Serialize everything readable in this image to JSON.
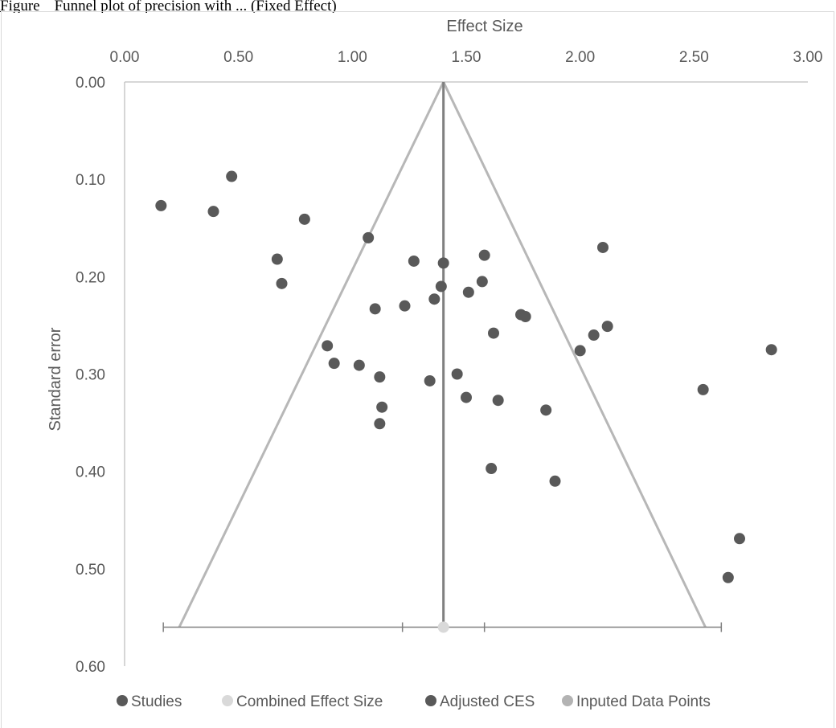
{
  "caption": {
    "label": "Figure",
    "text": "Funnel plot of precision with ... (Fixed Effect)"
  },
  "chart_data": {
    "type": "scatter",
    "title": "Effect Size",
    "xlabel": "Effect Size",
    "ylabel": "Standard error",
    "xlim": [
      0,
      3
    ],
    "ylim": [
      0,
      0.6
    ],
    "y_inverted": true,
    "x_axis_position": "top",
    "x_ticks": [
      "0.00",
      "0.50",
      "1.00",
      "1.50",
      "2.00",
      "2.50",
      "3.00"
    ],
    "y_ticks": [
      "0.00",
      "0.10",
      "0.20",
      "0.30",
      "0.40",
      "0.50",
      "0.60"
    ],
    "grid": false,
    "legend_position": "bottom",
    "colors": {
      "studies": "#595959",
      "combined": "#d9d9d9",
      "adjusted": "#595959",
      "imputed": "#b3b3b3",
      "funnel": "#b7b7b7",
      "center_line": "#808080",
      "axis": "#bfbfbf",
      "ci_line": "#808080"
    },
    "series": [
      {
        "name": "Studies",
        "points": [
          [
            0.16,
            0.127
          ],
          [
            0.39,
            0.133
          ],
          [
            0.47,
            0.097
          ],
          [
            0.79,
            0.141
          ],
          [
            0.67,
            0.182
          ],
          [
            0.69,
            0.207
          ],
          [
            1.07,
            0.16
          ],
          [
            1.27,
            0.184
          ],
          [
            1.4,
            0.186
          ],
          [
            1.58,
            0.178
          ],
          [
            2.1,
            0.17
          ],
          [
            1.39,
            0.21
          ],
          [
            1.57,
            0.205
          ],
          [
            1.51,
            0.216
          ],
          [
            1.36,
            0.223
          ],
          [
            1.23,
            0.23
          ],
          [
            1.1,
            0.233
          ],
          [
            1.74,
            0.239
          ],
          [
            1.76,
            0.241
          ],
          [
            1.62,
            0.258
          ],
          [
            2.12,
            0.251
          ],
          [
            2.06,
            0.26
          ],
          [
            2.0,
            0.276
          ],
          [
            2.84,
            0.275
          ],
          [
            0.89,
            0.271
          ],
          [
            0.92,
            0.289
          ],
          [
            1.03,
            0.291
          ],
          [
            1.12,
            0.303
          ],
          [
            1.34,
            0.307
          ],
          [
            1.46,
            0.3
          ],
          [
            1.5,
            0.324
          ],
          [
            1.64,
            0.327
          ],
          [
            1.13,
            0.334
          ],
          [
            1.85,
            0.337
          ],
          [
            1.12,
            0.351
          ],
          [
            2.54,
            0.316
          ],
          [
            1.61,
            0.397
          ],
          [
            1.89,
            0.41
          ],
          [
            2.7,
            0.469
          ],
          [
            2.65,
            0.509
          ]
        ]
      },
      {
        "name": "Combined Effect Size",
        "points": [
          [
            1.4,
            0.56
          ]
        ]
      },
      {
        "name": "Adjusted CES",
        "points": []
      },
      {
        "name": "Inputed Data Points",
        "points": []
      }
    ],
    "funnel": {
      "apex": [
        1.4,
        0.0
      ],
      "left_base": [
        0.24,
        0.56
      ],
      "right_base": [
        2.55,
        0.56
      ]
    },
    "center_line_x": 1.4,
    "confidence_bar": {
      "y": 0.56,
      "outer": [
        0.17,
        2.62
      ],
      "inner": [
        1.22,
        1.58
      ],
      "center": 1.4
    }
  }
}
